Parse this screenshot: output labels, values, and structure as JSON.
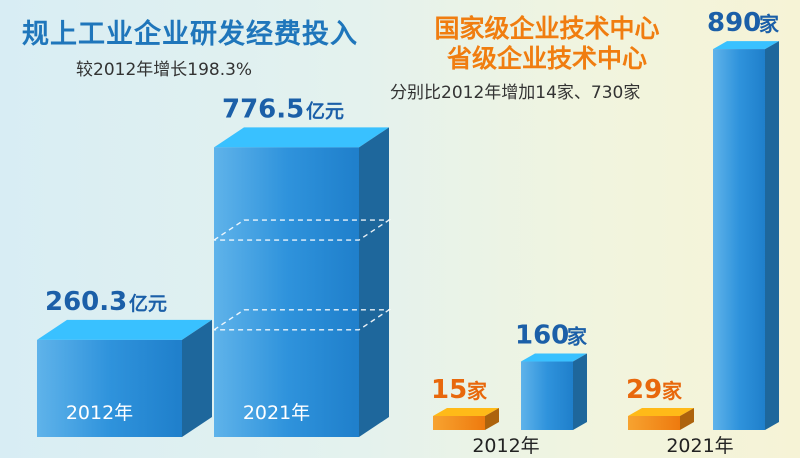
{
  "chart_data": [
    {
      "type": "bar",
      "title": "规上工业企业研发经费投入",
      "subtitle": "较2012年增长198.3%",
      "categories": [
        "2012年",
        "2021年"
      ],
      "series": [
        {
          "values": [
            260.3,
            776.5
          ]
        }
      ],
      "value_labels": [
        "260.3",
        "776.5"
      ],
      "unit": "亿元",
      "colors": [
        "#2a8fd8"
      ]
    },
    {
      "type": "bar",
      "title_lines": [
        "国家级企业技术中心",
        "省级企业技术中心"
      ],
      "subtitle": "分别比2012年增加14家、730家",
      "categories": [
        "2012年",
        "2021年"
      ],
      "series": [
        {
          "values": [
            15,
            29
          ],
          "color": "#f08a12"
        },
        {
          "values": [
            160,
            890
          ],
          "color": "#2a8fd8"
        }
      ],
      "unit": "家"
    }
  ]
}
